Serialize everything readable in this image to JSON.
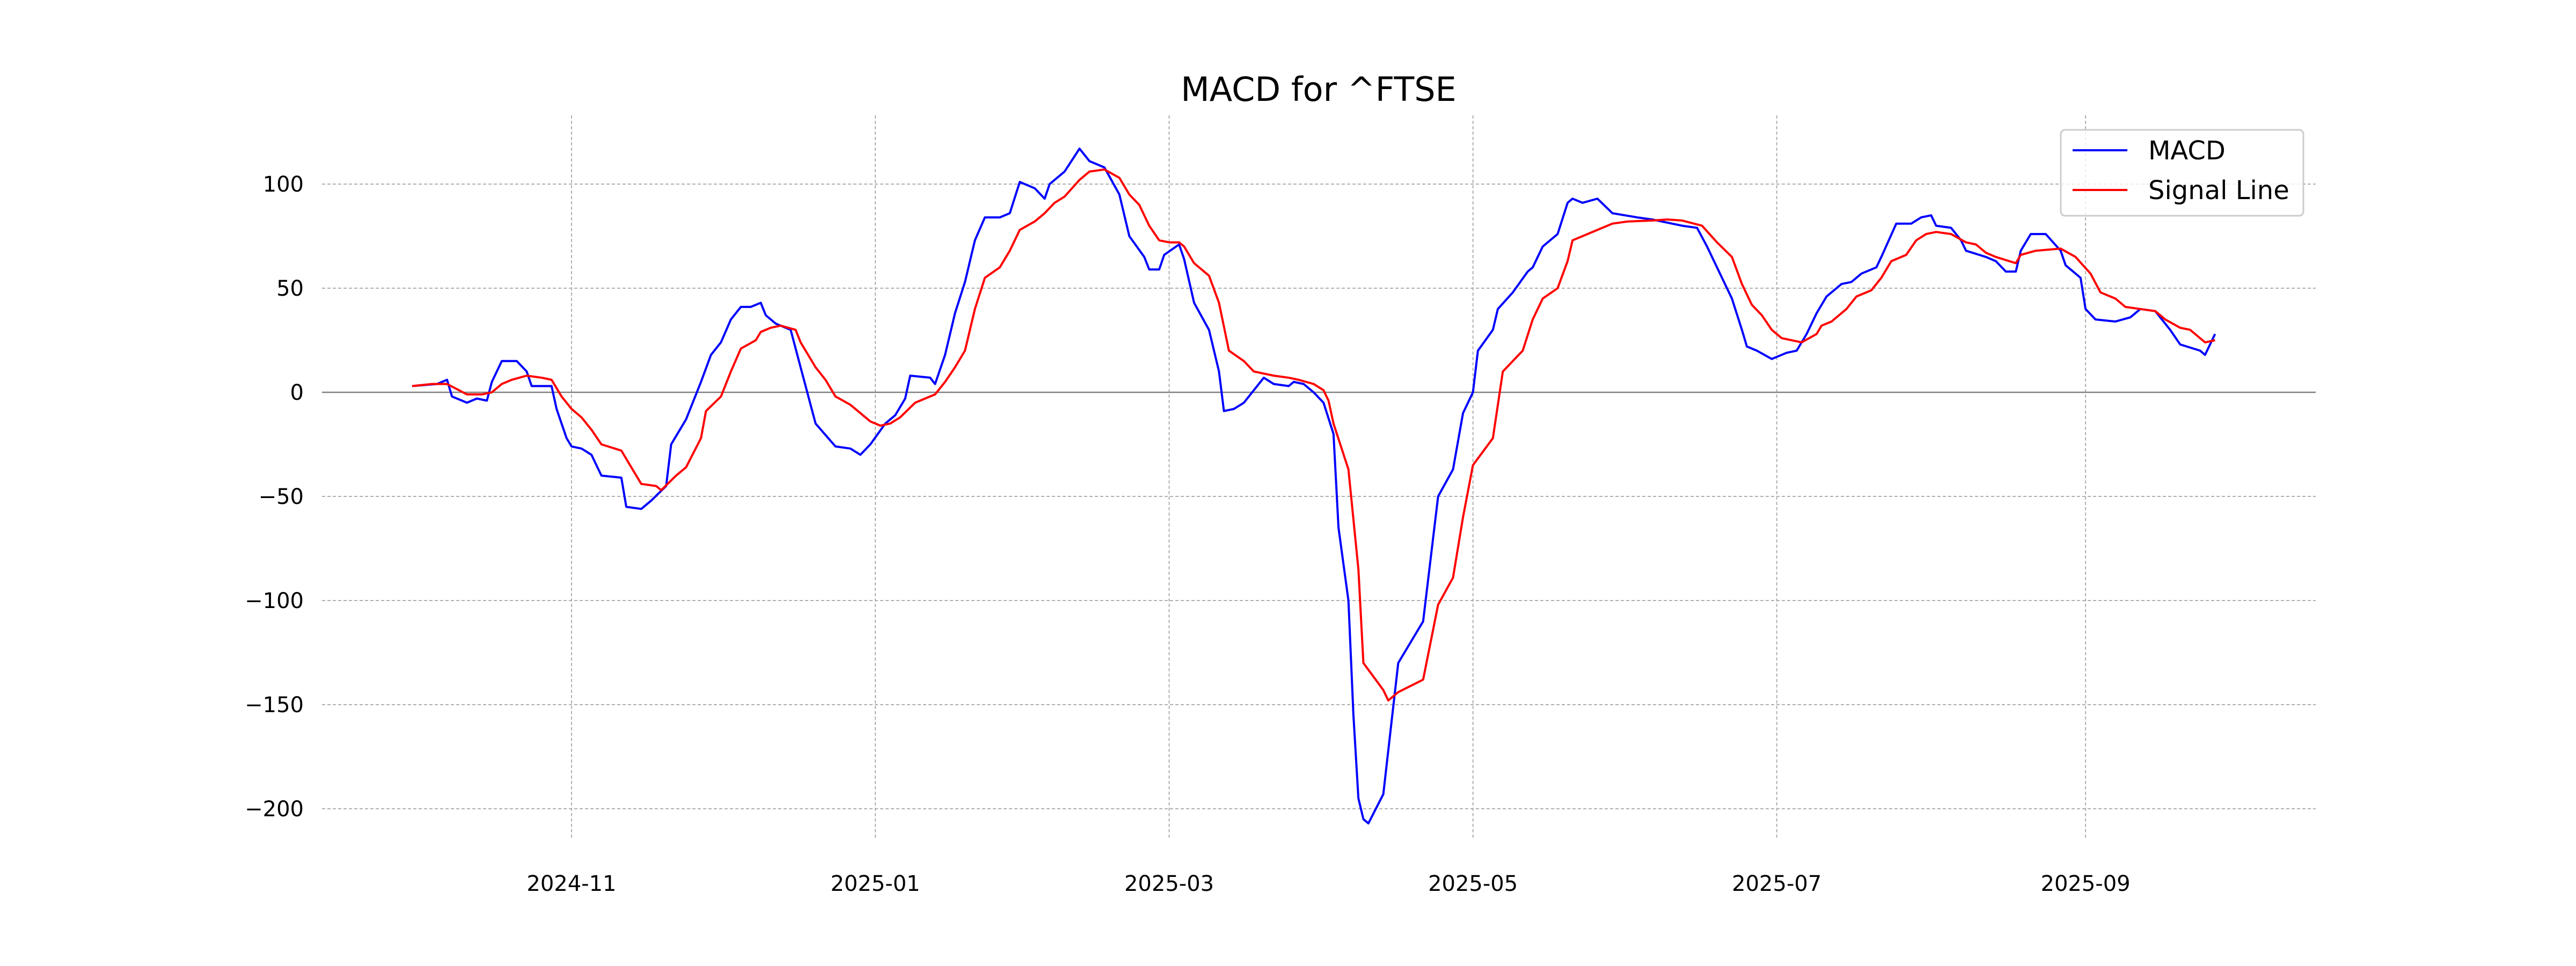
{
  "chart_data": {
    "type": "line",
    "title": "MACD for ^FTSE",
    "xlabel": "",
    "ylabel": "",
    "x_unit": "days since 2024-09-30",
    "xlim_days": [
      -25,
      375
    ],
    "ylim": [
      -218,
      132
    ],
    "grid": true,
    "legend_position": "top-right",
    "x_ticks": [
      {
        "label": "2024-11",
        "day": 32
      },
      {
        "label": "2025-01",
        "day": 93
      },
      {
        "label": "2025-03",
        "day": 152
      },
      {
        "label": "2025-05",
        "day": 213
      },
      {
        "label": "2025-07",
        "day": 274
      },
      {
        "label": "2025-09",
        "day": 336
      }
    ],
    "y_ticks": [
      100,
      50,
      0,
      -50,
      -100,
      -150,
      -200
    ],
    "y_tick_labels": [
      "100",
      "50",
      "0",
      "−50",
      "−100",
      "−150",
      "−200"
    ],
    "series": [
      {
        "name": "MACD",
        "color": "#0000ff",
        "points": [
          [
            0,
            3
          ],
          [
            5,
            4
          ],
          [
            7,
            6
          ],
          [
            8,
            -2
          ],
          [
            11,
            -5
          ],
          [
            13,
            -3
          ],
          [
            15,
            -4
          ],
          [
            16,
            5
          ],
          [
            18,
            15
          ],
          [
            21,
            15
          ],
          [
            23,
            10
          ],
          [
            24,
            3
          ],
          [
            28,
            3
          ],
          [
            29,
            -8
          ],
          [
            31,
            -22
          ],
          [
            32,
            -26
          ],
          [
            34,
            -27
          ],
          [
            36,
            -30
          ],
          [
            38,
            -40
          ],
          [
            42,
            -41
          ],
          [
            43,
            -55
          ],
          [
            46,
            -56
          ],
          [
            48,
            -52
          ],
          [
            51,
            -45
          ],
          [
            52,
            -25
          ],
          [
            55,
            -13
          ],
          [
            58,
            5
          ],
          [
            60,
            18
          ],
          [
            62,
            24
          ],
          [
            64,
            35
          ],
          [
            66,
            41
          ],
          [
            68,
            41
          ],
          [
            70,
            43
          ],
          [
            71,
            37
          ],
          [
            73,
            33
          ],
          [
            76,
            30
          ],
          [
            78,
            12
          ],
          [
            81,
            -15
          ],
          [
            85,
            -26
          ],
          [
            88,
            -27
          ],
          [
            90,
            -30
          ],
          [
            92,
            -25
          ],
          [
            95,
            -15
          ],
          [
            97,
            -11
          ],
          [
            99,
            -3
          ],
          [
            100,
            8
          ],
          [
            104,
            7
          ],
          [
            105,
            4
          ],
          [
            107,
            18
          ],
          [
            109,
            38
          ],
          [
            111,
            53
          ],
          [
            113,
            73
          ],
          [
            115,
            84
          ],
          [
            118,
            84
          ],
          [
            120,
            86
          ],
          [
            122,
            101
          ],
          [
            125,
            98
          ],
          [
            127,
            93
          ],
          [
            128,
            100
          ],
          [
            131,
            106
          ],
          [
            134,
            117
          ],
          [
            136,
            111
          ],
          [
            139,
            108
          ],
          [
            142,
            95
          ],
          [
            144,
            75
          ],
          [
            147,
            65
          ],
          [
            148,
            59
          ],
          [
            150,
            59
          ],
          [
            151,
            66
          ],
          [
            154,
            71
          ],
          [
            155,
            64
          ],
          [
            157,
            43
          ],
          [
            160,
            30
          ],
          [
            162,
            10
          ],
          [
            163,
            -9
          ],
          [
            165,
            -8
          ],
          [
            167,
            -5
          ],
          [
            170,
            4
          ],
          [
            171,
            7
          ],
          [
            173,
            4
          ],
          [
            176,
            3
          ],
          [
            177,
            5
          ],
          [
            179,
            4
          ],
          [
            181,
            0
          ],
          [
            183,
            -5
          ],
          [
            185,
            -20
          ],
          [
            186,
            -65
          ],
          [
            188,
            -100
          ],
          [
            189,
            -155
          ],
          [
            190,
            -195
          ],
          [
            191,
            -205
          ],
          [
            192,
            -207
          ],
          [
            195,
            -193
          ],
          [
            198,
            -130
          ],
          [
            203,
            -110
          ],
          [
            206,
            -50
          ],
          [
            209,
            -37
          ],
          [
            211,
            -10
          ],
          [
            213,
            0
          ],
          [
            214,
            20
          ],
          [
            217,
            30
          ],
          [
            218,
            40
          ],
          [
            221,
            48
          ],
          [
            224,
            58
          ],
          [
            225,
            60
          ],
          [
            227,
            70
          ],
          [
            230,
            76
          ],
          [
            232,
            91
          ],
          [
            233,
            93
          ],
          [
            235,
            91
          ],
          [
            238,
            93
          ],
          [
            241,
            86
          ],
          [
            246,
            84
          ],
          [
            249,
            83
          ],
          [
            255,
            80
          ],
          [
            258,
            79
          ],
          [
            260,
            70
          ],
          [
            262,
            60
          ],
          [
            265,
            45
          ],
          [
            267,
            30
          ],
          [
            268,
            22
          ],
          [
            270,
            20
          ],
          [
            273,
            16
          ],
          [
            276,
            19
          ],
          [
            278,
            20
          ],
          [
            280,
            28
          ],
          [
            282,
            38
          ],
          [
            284,
            46
          ],
          [
            287,
            52
          ],
          [
            289,
            53
          ],
          [
            291,
            57
          ],
          [
            294,
            60
          ],
          [
            295,
            65
          ],
          [
            298,
            81
          ],
          [
            301,
            81
          ],
          [
            303,
            84
          ],
          [
            305,
            85
          ],
          [
            306,
            80
          ],
          [
            309,
            79
          ],
          [
            311,
            73
          ],
          [
            312,
            68
          ],
          [
            316,
            65
          ],
          [
            318,
            63
          ],
          [
            320,
            58
          ],
          [
            322,
            58
          ],
          [
            323,
            68
          ],
          [
            325,
            76
          ],
          [
            328,
            76
          ],
          [
            331,
            68
          ],
          [
            332,
            61
          ],
          [
            335,
            55
          ],
          [
            336,
            40
          ],
          [
            338,
            35
          ],
          [
            342,
            34
          ],
          [
            345,
            36
          ],
          [
            347,
            40
          ],
          [
            350,
            39
          ],
          [
            353,
            30
          ],
          [
            355,
            23
          ],
          [
            359,
            20
          ],
          [
            360,
            18
          ],
          [
            362,
            28
          ]
        ]
      },
      {
        "name": "Signal Line",
        "color": "#ff0000",
        "points": [
          [
            0,
            3
          ],
          [
            4,
            4
          ],
          [
            7,
            4
          ],
          [
            11,
            -1
          ],
          [
            14,
            -1
          ],
          [
            16,
            0
          ],
          [
            18,
            4
          ],
          [
            20,
            6
          ],
          [
            23,
            8
          ],
          [
            26,
            7
          ],
          [
            28,
            6
          ],
          [
            30,
            -2
          ],
          [
            32,
            -8
          ],
          [
            34,
            -12
          ],
          [
            36,
            -18
          ],
          [
            38,
            -25
          ],
          [
            42,
            -28
          ],
          [
            44,
            -36
          ],
          [
            46,
            -44
          ],
          [
            49,
            -45
          ],
          [
            50,
            -47
          ],
          [
            53,
            -40
          ],
          [
            55,
            -36
          ],
          [
            58,
            -22
          ],
          [
            59,
            -9
          ],
          [
            62,
            -2
          ],
          [
            64,
            10
          ],
          [
            66,
            21
          ],
          [
            69,
            25
          ],
          [
            70,
            29
          ],
          [
            72,
            31
          ],
          [
            74,
            32
          ],
          [
            77,
            30
          ],
          [
            78,
            24
          ],
          [
            81,
            12
          ],
          [
            83,
            6
          ],
          [
            85,
            -2
          ],
          [
            88,
            -6
          ],
          [
            90,
            -10
          ],
          [
            92,
            -14
          ],
          [
            94,
            -16
          ],
          [
            96,
            -15
          ],
          [
            98,
            -12
          ],
          [
            101,
            -5
          ],
          [
            103,
            -3
          ],
          [
            105,
            -1
          ],
          [
            107,
            5
          ],
          [
            109,
            12
          ],
          [
            111,
            20
          ],
          [
            113,
            40
          ],
          [
            115,
            55
          ],
          [
            118,
            60
          ],
          [
            120,
            68
          ],
          [
            122,
            78
          ],
          [
            125,
            82
          ],
          [
            127,
            86
          ],
          [
            129,
            91
          ],
          [
            131,
            94
          ],
          [
            134,
            102
          ],
          [
            136,
            106
          ],
          [
            139,
            107
          ],
          [
            142,
            103
          ],
          [
            144,
            95
          ],
          [
            146,
            90
          ],
          [
            148,
            80
          ],
          [
            150,
            73
          ],
          [
            152,
            72
          ],
          [
            154,
            72
          ],
          [
            155,
            70
          ],
          [
            157,
            62
          ],
          [
            160,
            56
          ],
          [
            162,
            43
          ],
          [
            164,
            20
          ],
          [
            167,
            15
          ],
          [
            169,
            10
          ],
          [
            173,
            8
          ],
          [
            176,
            7
          ],
          [
            178,
            6
          ],
          [
            181,
            4
          ],
          [
            183,
            1
          ],
          [
            184,
            -4
          ],
          [
            185,
            -15
          ],
          [
            188,
            -37
          ],
          [
            190,
            -85
          ],
          [
            191,
            -130
          ],
          [
            195,
            -143
          ],
          [
            196,
            -148
          ],
          [
            198,
            -144
          ],
          [
            203,
            -138
          ],
          [
            206,
            -102
          ],
          [
            209,
            -89
          ],
          [
            211,
            -60
          ],
          [
            213,
            -35
          ],
          [
            217,
            -22
          ],
          [
            219,
            10
          ],
          [
            223,
            20
          ],
          [
            225,
            35
          ],
          [
            227,
            45
          ],
          [
            230,
            50
          ],
          [
            232,
            63
          ],
          [
            233,
            73
          ],
          [
            236,
            76
          ],
          [
            238,
            78
          ],
          [
            241,
            81
          ],
          [
            244,
            82
          ],
          [
            249,
            82.5
          ],
          [
            252,
            83
          ],
          [
            255,
            82.5
          ],
          [
            259,
            80
          ],
          [
            262,
            72
          ],
          [
            265,
            65
          ],
          [
            267,
            52
          ],
          [
            269,
            42
          ],
          [
            271,
            37
          ],
          [
            273,
            30
          ],
          [
            275,
            26
          ],
          [
            279,
            24
          ],
          [
            282,
            28
          ],
          [
            283,
            32
          ],
          [
            285,
            34
          ],
          [
            288,
            40
          ],
          [
            290,
            46
          ],
          [
            293,
            49
          ],
          [
            295,
            55
          ],
          [
            297,
            63
          ],
          [
            300,
            66
          ],
          [
            302,
            73
          ],
          [
            304,
            76
          ],
          [
            306,
            77
          ],
          [
            309,
            76
          ],
          [
            312,
            72
          ],
          [
            314,
            71
          ],
          [
            316,
            67
          ],
          [
            318,
            65
          ],
          [
            322,
            62
          ],
          [
            323,
            66
          ],
          [
            326,
            68
          ],
          [
            331,
            69
          ],
          [
            334,
            65
          ],
          [
            337,
            57
          ],
          [
            339,
            48
          ],
          [
            342,
            45
          ],
          [
            344,
            41
          ],
          [
            347,
            40
          ],
          [
            350,
            39
          ],
          [
            352,
            35
          ],
          [
            355,
            31
          ],
          [
            357,
            30
          ],
          [
            359,
            26
          ],
          [
            360,
            24
          ],
          [
            362,
            25
          ]
        ]
      }
    ]
  }
}
